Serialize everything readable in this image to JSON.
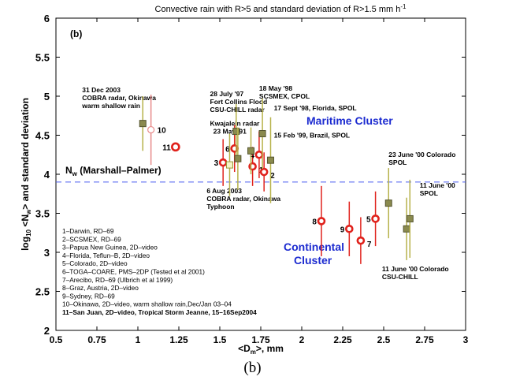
{
  "caption": "(b)",
  "chart_data": {
    "type": "scatter",
    "title": "Convective rain with R>5 and standard deviation of R>1.5 mm h",
    "title_superscript": "-1",
    "panel_label": "(b)",
    "xlabel": "<D",
    "xlabel_sub": "m",
    "xlabel_tail": ">, mm",
    "ylabel": "log",
    "ylabel_sub1": "10",
    "ylabel_mid": " <N",
    "ylabel_sub2": "w",
    "ylabel_tail": "> and standard deviation",
    "xlim": [
      0.5,
      3
    ],
    "ylim": [
      2,
      6
    ],
    "xticks": [
      "0.5",
      "0.75",
      "1",
      "1.25",
      "1.5",
      "1.75",
      "2",
      "2.25",
      "2.5",
      "2.75",
      "3"
    ],
    "yticks": [
      "2",
      "2.5",
      "3",
      "3.5",
      "4",
      "4.5",
      "5",
      "5.5",
      "6"
    ],
    "grid": false,
    "reference_line": {
      "y": 3.9,
      "label": "N",
      "label_sub": "w",
      "label_tail": " (Marshall–Palmer)",
      "color": "#4a5cf0"
    },
    "maritime_cluster": {
      "label": "Maritime Cluster",
      "color": "#1c2bd0"
    },
    "continental_cluster": {
      "label": "Continental",
      "label2": "Cluster",
      "color": "#1c2bd0"
    },
    "colors": {
      "circle": "#e0221c",
      "square_fill": "#8a8a4e",
      "square_bar": "#b7b24a",
      "open_square": "#9a9a3a",
      "open_circle": "#e88a8a"
    },
    "series": [
      {
        "marker": "circle",
        "points": [
          {
            "x": 1.08,
            "y": 4.57,
            "err": 0.45,
            "label": "10",
            "open": true
          },
          {
            "x": 1.23,
            "y": 4.35,
            "err": 0.0,
            "label": "11",
            "bold": true
          },
          {
            "x": 1.52,
            "y": 4.15,
            "err": 0.3,
            "label": "3"
          },
          {
            "x": 1.59,
            "y": 4.33,
            "err": 0.3,
            "label": "6"
          },
          {
            "x": 1.7,
            "y": 4.1,
            "err": 0.25,
            "label": "1"
          },
          {
            "x": 1.74,
            "y": 4.25,
            "err": 0.3,
            "label": "4"
          },
          {
            "x": 1.77,
            "y": 4.03,
            "err": 0.25,
            "label": "2"
          },
          {
            "x": 2.12,
            "y": 3.4,
            "err": 0.45,
            "label": "8"
          },
          {
            "x": 2.29,
            "y": 3.3,
            "err": 0.35,
            "label": "9"
          },
          {
            "x": 2.36,
            "y": 3.15,
            "err": 0.3,
            "label": "7"
          },
          {
            "x": 2.45,
            "y": 3.43,
            "err": 0.35,
            "label": "5"
          }
        ]
      },
      {
        "marker": "square",
        "points": [
          {
            "x": 1.03,
            "y": 4.65,
            "err": 0.35
          },
          {
            "x": 1.56,
            "y": 4.12,
            "err": 0.4,
            "open": true
          },
          {
            "x": 1.6,
            "y": 4.55,
            "err": 0.35
          },
          {
            "x": 1.61,
            "y": 4.2,
            "err": 0.4
          },
          {
            "x": 1.69,
            "y": 4.3,
            "err": 0.3
          },
          {
            "x": 1.76,
            "y": 4.52,
            "err": 0.45
          },
          {
            "x": 1.81,
            "y": 4.18,
            "err": 0.55
          },
          {
            "x": 2.53,
            "y": 3.63,
            "err": 0.45
          },
          {
            "x": 2.64,
            "y": 3.3,
            "err": 0.4
          },
          {
            "x": 2.66,
            "y": 3.43,
            "err": 0.5
          }
        ]
      }
    ],
    "annotations": [
      {
        "lines": [
          "31 Dec 2003",
          "COBRA radar, Okinawa",
          "warm shallow rain"
        ],
        "x": 0.66,
        "y": 5.05
      },
      {
        "lines": [
          "28 July '97",
          "Fort Collins Flood",
          "CSU-CHILL radar"
        ],
        "x": 1.44,
        "y": 5.0
      },
      {
        "lines": [
          "18 May '98",
          "SCSMEX, CPOL"
        ],
        "x": 1.74,
        "y": 5.07
      },
      {
        "lines": [
          "17 Sept '98, Florida, SPOL"
        ],
        "x": 1.83,
        "y": 4.82
      },
      {
        "lines": [
          "Kwajalein radar"
        ],
        "x": 1.44,
        "y": 4.62
      },
      {
        "lines": [
          "23 May '91"
        ],
        "x": 1.46,
        "y": 4.52
      },
      {
        "lines": [
          "15 Feb '99, Brazil, SPOL"
        ],
        "x": 1.83,
        "y": 4.47
      },
      {
        "lines": [
          "6 Aug 2003",
          "COBRA radar, Okinawa",
          "Typhoon"
        ],
        "x": 1.42,
        "y": 3.76
      },
      {
        "lines": [
          "23 June '00 Colorado",
          "SPOL"
        ],
        "x": 2.53,
        "y": 4.22
      },
      {
        "lines": [
          "11 June '00",
          "SPOL"
        ],
        "x": 2.72,
        "y": 3.83
      },
      {
        "lines": [
          "11 June '00 Colorado",
          "CSU-CHILL"
        ],
        "x": 2.49,
        "y": 2.76
      }
    ],
    "key": [
      "1–Darwin, RD–69",
      "2–SCSMEX, RD–69",
      "3–Papua New Guinea, 2D–video",
      "4–Florida, Teflun–B, 2D–video",
      "5–Colorado, 2D–video",
      "6–TOGA–COARE, PMS–2DP (Tested et al 2001)",
      "7–Arecibo, RD–69 (Ulbrich et al 1999)",
      "8–Graz, Austria, 2D–video",
      "9–Sydney, RD–69",
      "10–Okinawa, 2D–video, warm shallow rain,Dec/Jan 03–04",
      "11–San Juan, 2D–video, Tropical Storm Jeanne, 15–16Sep2004"
    ]
  }
}
